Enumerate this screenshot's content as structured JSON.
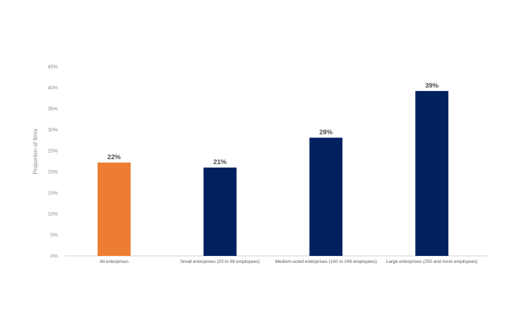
{
  "chart_data": {
    "type": "bar",
    "categories": [
      "All enterprises",
      "Small enterprises (20 to 99 employees)",
      "Medium-sized enterprises (100 to 249 employees)",
      "Large enterprises (250 and more employees)"
    ],
    "values": [
      22.2,
      21.0,
      28.1,
      39.2
    ],
    "data_labels": [
      "22%",
      "21%",
      "28%",
      "39%"
    ],
    "bar_colors": [
      "#ED7D31",
      "#002060",
      "#002060",
      "#002060"
    ],
    "ylabel": "Proportion of firms",
    "xlabel": "",
    "ylim": [
      0,
      45
    ],
    "yticks": [
      0,
      5,
      10,
      15,
      20,
      25,
      30,
      35,
      40,
      45
    ],
    "ytick_labels": [
      "0%",
      "5%",
      "10%",
      "15%",
      "20%",
      "25%",
      "30%",
      "35%",
      "40%",
      "45%"
    ],
    "grid": false,
    "legend": "none"
  }
}
